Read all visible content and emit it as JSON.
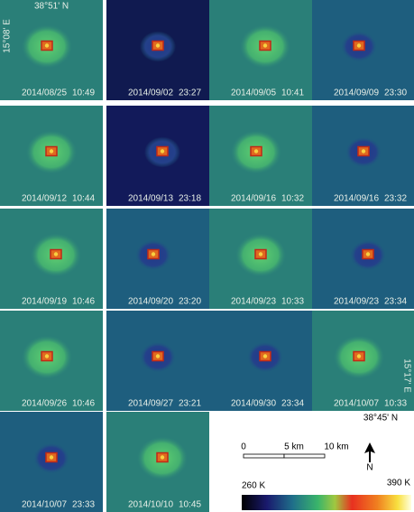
{
  "coordinates": {
    "top_lat": "38°51' N",
    "left_lon": "15°08' E",
    "right_lon": "15°17' E",
    "bottom_lat": "38°45' N"
  },
  "tiles": [
    {
      "date": "2014/08/25",
      "time": "10:49"
    },
    {
      "date": "2014/09/02",
      "time": "23:27"
    },
    {
      "date": "2014/09/05",
      "time": "10:41"
    },
    {
      "date": "2014/09/09",
      "time": "23:30"
    },
    {
      "date": "2014/09/12",
      "time": "10:44"
    },
    {
      "date": "2014/09/13",
      "time": "23:18"
    },
    {
      "date": "2014/09/16",
      "time": "10:32"
    },
    {
      "date": "2014/09/16",
      "time": "23:32"
    },
    {
      "date": "2014/09/19",
      "time": "10:46"
    },
    {
      "date": "2014/09/20",
      "time": "23:20"
    },
    {
      "date": "2014/09/23",
      "time": "10:33"
    },
    {
      "date": "2014/09/23",
      "time": "23:34"
    },
    {
      "date": "2014/09/26",
      "time": "10:46"
    },
    {
      "date": "2014/09/27",
      "time": "23:21"
    },
    {
      "date": "2014/09/30",
      "time": "23:34"
    },
    {
      "date": "2014/10/07",
      "time": "10:33"
    },
    {
      "date": "2014/10/07",
      "time": "23:33"
    },
    {
      "date": "2014/10/10",
      "time": "10:45"
    }
  ],
  "scale_bar": {
    "labels": [
      "0",
      "5 km",
      "10 km"
    ],
    "north": "N"
  },
  "colorbar": {
    "min_label": "260 K",
    "max_label": "390 K"
  }
}
